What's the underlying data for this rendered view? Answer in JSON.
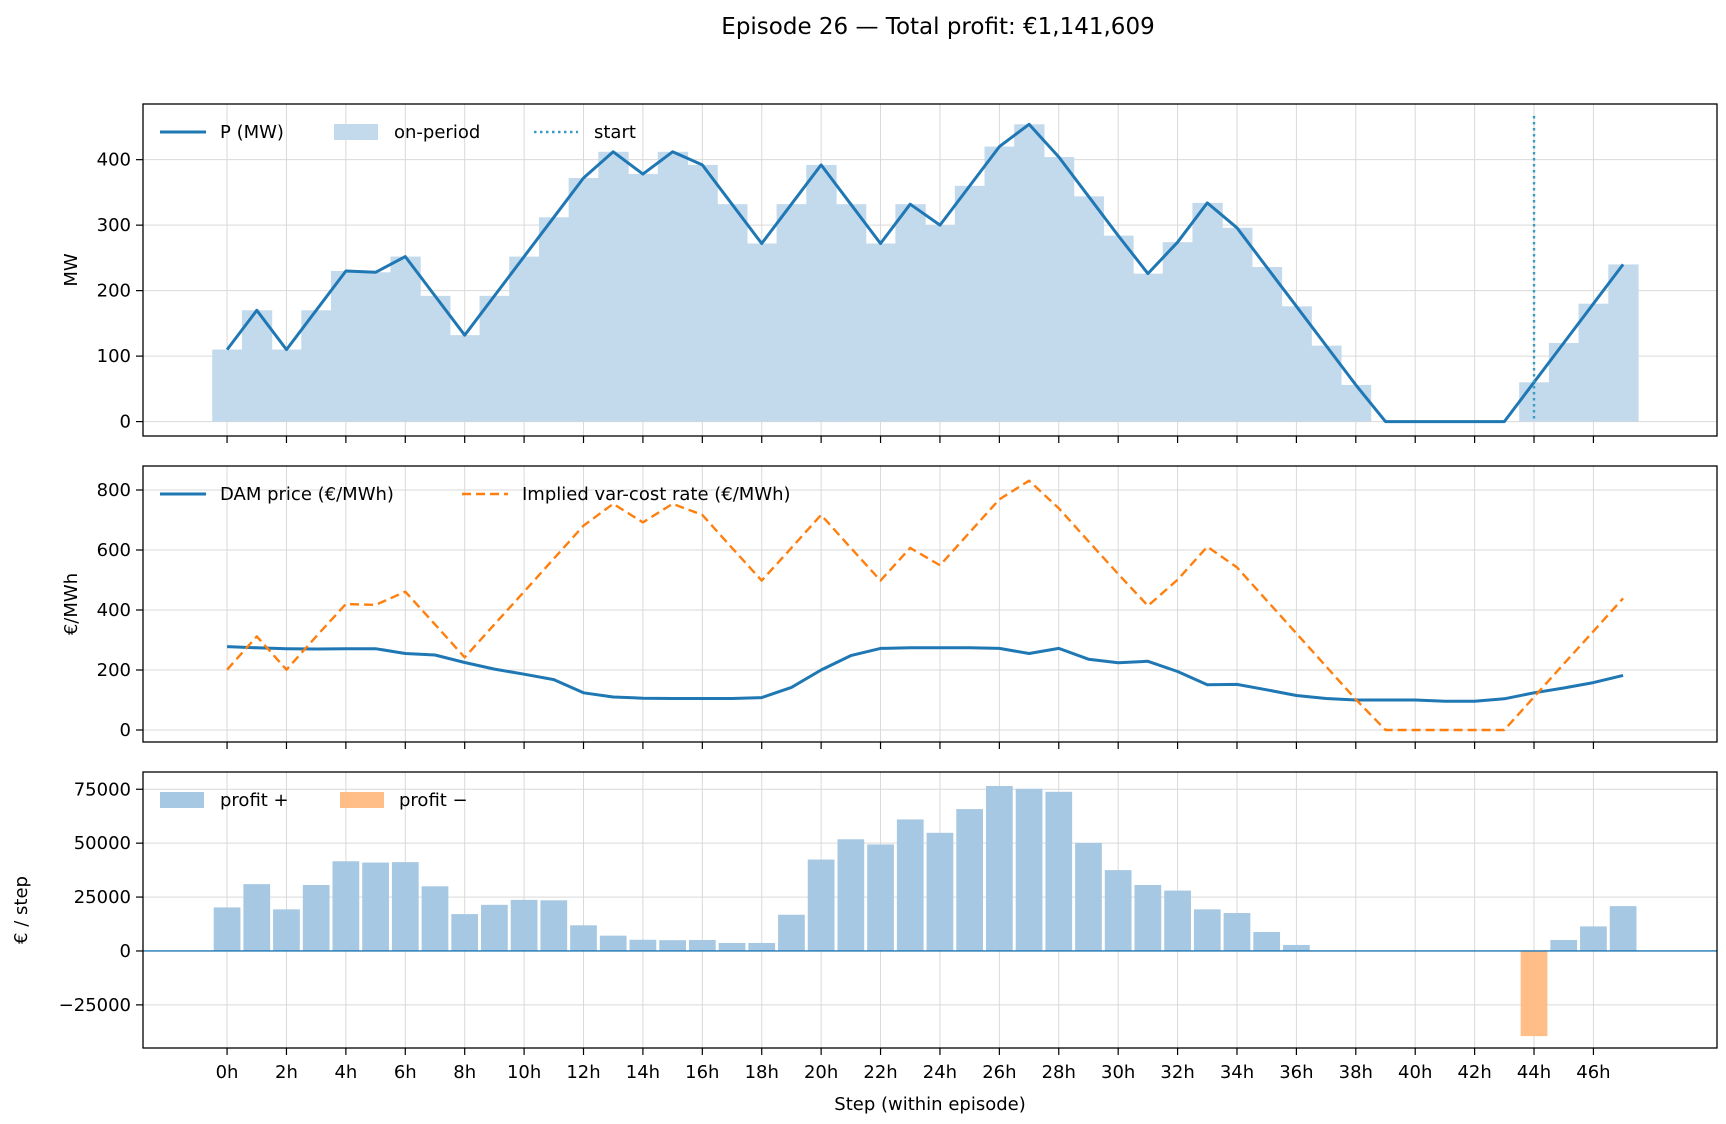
{
  "title": "Episode 26 — Total profit: €1,141,609",
  "xlabel": "Step (within episode)",
  "x_tick_labels": [
    "0h",
    "2h",
    "4h",
    "6h",
    "8h",
    "10h",
    "12h",
    "14h",
    "16h",
    "18h",
    "20h",
    "22h",
    "24h",
    "26h",
    "28h",
    "30h",
    "32h",
    "34h",
    "36h",
    "38h",
    "40h",
    "42h",
    "44h",
    "46h"
  ],
  "colors": {
    "blue": "#1f77b4",
    "orange": "#ff7f0e",
    "bar_blue": "#a6c8e3",
    "bar_orange": "#ffbe87",
    "fill_blue": "#c3d9ec",
    "start_line": "#3a9bc0"
  },
  "chart_data": [
    {
      "type": "line",
      "ylabel": "MW",
      "ylim": [
        -22,
        485
      ],
      "yticks": [
        0,
        100,
        200,
        300,
        400
      ],
      "grid": true,
      "legend_placement": "top-left",
      "series": [
        {
          "name": "P (MW)",
          "kind": "line",
          "x": [
            0,
            1,
            2,
            3,
            4,
            5,
            6,
            7,
            8,
            9,
            10,
            11,
            12,
            13,
            14,
            15,
            16,
            17,
            18,
            19,
            20,
            21,
            22,
            23,
            24,
            25,
            26,
            27,
            28,
            29,
            30,
            31,
            32,
            33,
            34,
            35,
            36,
            37,
            38,
            39,
            40,
            41,
            42,
            43,
            44,
            45,
            46,
            47
          ],
          "values": [
            110,
            170,
            110,
            170,
            230,
            228,
            252,
            192,
            132,
            192,
            252,
            312,
            372,
            412,
            378,
            412,
            392,
            332,
            272,
            332,
            392,
            332,
            272,
            332,
            300,
            360,
            420,
            454,
            404,
            344,
            284,
            226,
            274,
            334,
            296,
            236,
            176,
            116,
            56,
            0,
            0,
            0,
            0,
            0,
            60,
            120,
            180,
            240
          ]
        },
        {
          "name": "on-period",
          "kind": "step-fill",
          "x": [
            0,
            1,
            2,
            3,
            4,
            5,
            6,
            7,
            8,
            9,
            10,
            11,
            12,
            13,
            14,
            15,
            16,
            17,
            18,
            19,
            20,
            21,
            22,
            23,
            24,
            25,
            26,
            27,
            28,
            29,
            30,
            31,
            32,
            33,
            34,
            35,
            36,
            37,
            38,
            44,
            45,
            46,
            47
          ],
          "values": [
            110,
            170,
            110,
            170,
            230,
            228,
            252,
            192,
            132,
            192,
            252,
            312,
            372,
            412,
            378,
            412,
            392,
            332,
            272,
            332,
            392,
            332,
            272,
            332,
            300,
            360,
            420,
            454,
            404,
            344,
            284,
            226,
            274,
            334,
            296,
            236,
            176,
            116,
            56,
            60,
            120,
            180,
            240
          ]
        },
        {
          "name": "start",
          "kind": "vline",
          "x": 44
        }
      ]
    },
    {
      "type": "line",
      "ylabel": "€/MWh",
      "ylim": [
        -40,
        880
      ],
      "yticks": [
        0,
        200,
        400,
        600,
        800
      ],
      "grid": true,
      "legend_placement": "top-left",
      "series": [
        {
          "name": "DAM price (€/MWh)",
          "kind": "line",
          "x": [
            0,
            1,
            2,
            3,
            4,
            5,
            6,
            7,
            8,
            9,
            10,
            11,
            12,
            13,
            14,
            15,
            16,
            17,
            18,
            19,
            20,
            21,
            22,
            23,
            24,
            25,
            26,
            27,
            28,
            29,
            30,
            31,
            32,
            33,
            34,
            35,
            36,
            37,
            38,
            39,
            40,
            41,
            42,
            43,
            44,
            45,
            46,
            47
          ],
          "values": [
            278,
            274,
            271,
            270,
            271,
            271,
            255,
            250,
            225,
            203,
            186,
            168,
            124,
            110,
            106,
            105,
            105,
            105,
            108,
            142,
            200,
            248,
            272,
            274,
            274,
            274,
            272,
            255,
            272,
            236,
            224,
            229,
            195,
            151,
            152,
            134,
            115,
            105,
            100,
            100,
            100,
            96,
            96,
            104,
            124,
            140,
            158,
            182
          ]
        },
        {
          "name": "Implied var-cost rate (€/MWh)",
          "kind": "dashed",
          "x": [
            0,
            1,
            2,
            3,
            4,
            5,
            6,
            7,
            8,
            9,
            10,
            11,
            12,
            13,
            14,
            15,
            16,
            17,
            18,
            19,
            20,
            21,
            22,
            23,
            24,
            25,
            26,
            27,
            28,
            29,
            30,
            31,
            32,
            33,
            34,
            35,
            36,
            37,
            38,
            39,
            40,
            41,
            42,
            43,
            44,
            45,
            46,
            47
          ],
          "values": [
            201,
            312,
            201,
            312,
            420,
            417,
            461,
            352,
            242,
            352,
            461,
            571,
            681,
            754,
            692,
            754,
            717,
            607,
            498,
            607,
            717,
            607,
            498,
            607,
            549,
            659,
            769,
            831,
            739,
            629,
            520,
            414,
            501,
            611,
            542,
            432,
            322,
            212,
            102,
            0,
            0,
            0,
            0,
            0,
            110,
            220,
            329,
            439
          ]
        }
      ]
    },
    {
      "type": "bar",
      "ylabel": "€ / step",
      "ylim": [
        -45000,
        83000
      ],
      "yticks": [
        -25000,
        0,
        25000,
        50000,
        75000
      ],
      "grid": true,
      "legend_placement": "top-left",
      "bar_width": 0.9,
      "series": [
        {
          "name": "profit +",
          "x": [
            0,
            1,
            2,
            3,
            4,
            5,
            6,
            7,
            8,
            9,
            10,
            11,
            12,
            13,
            14,
            15,
            16,
            17,
            18,
            19,
            20,
            21,
            22,
            23,
            24,
            25,
            26,
            27,
            28,
            29,
            30,
            31,
            32,
            33,
            34,
            35,
            36,
            45,
            46,
            47
          ],
          "values": [
            20200,
            31000,
            19300,
            30600,
            41600,
            41000,
            41200,
            30000,
            17100,
            21400,
            23700,
            23500,
            11900,
            7100,
            5200,
            5000,
            5100,
            3700,
            3700,
            16800,
            42400,
            51800,
            49400,
            61000,
            54800,
            65800,
            76500,
            75200,
            73800,
            50100,
            37500,
            30600,
            28000,
            19300,
            17600,
            8800,
            2800,
            5100,
            11400,
            20800
          ]
        },
        {
          "name": "profit −",
          "x": [
            44
          ],
          "values": [
            -39500
          ]
        }
      ]
    }
  ]
}
